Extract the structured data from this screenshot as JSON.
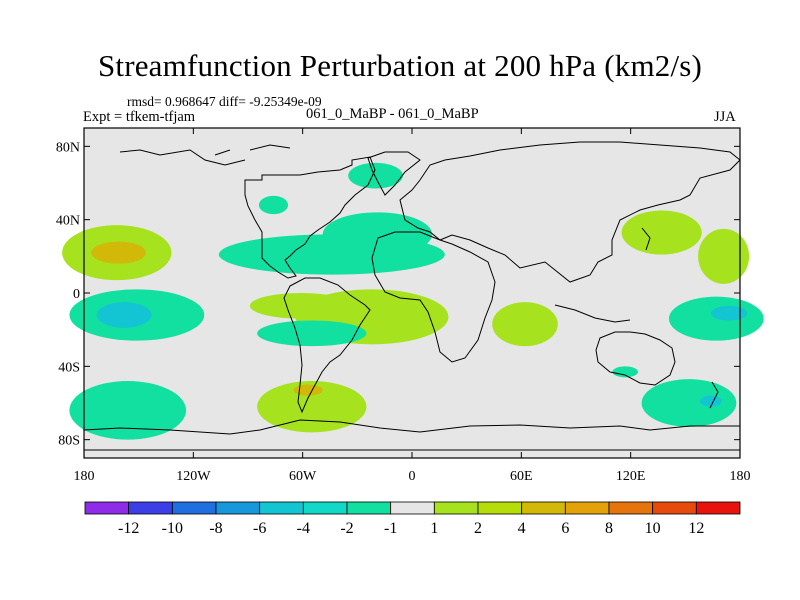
{
  "figure": {
    "title": "Streamfunction Perturbation at 200 hPa (km2/s)",
    "stats_line": "rmsd= 0.968647 diff= -9.25349e-09",
    "experiment_label": "Expt = tfkem-tfjam",
    "case_label": "061_0_MaBP - 061_0_MaBP",
    "season_label": "JJA"
  },
  "map": {
    "lon_range": [
      -180,
      180
    ],
    "lat_range": [
      -90,
      90
    ],
    "background_color": "#e6e6e6",
    "lat_ticks": [
      {
        "value": 80,
        "label": "80N"
      },
      {
        "value": 40,
        "label": "40N"
      },
      {
        "value": 0,
        "label": "0"
      },
      {
        "value": -40,
        "label": "40S"
      },
      {
        "value": -80,
        "label": "80S"
      }
    ],
    "lon_ticks": [
      {
        "value": -180,
        "label": "180"
      },
      {
        "value": -120,
        "label": "120W"
      },
      {
        "value": -60,
        "label": "60W"
      },
      {
        "value": 0,
        "label": "0"
      },
      {
        "value": 60,
        "label": "60E"
      },
      {
        "value": 120,
        "label": "120E"
      },
      {
        "value": 180,
        "label": "180"
      }
    ]
  },
  "colorbar": {
    "colors": [
      "#8e2ce8",
      "#3c3ee6",
      "#1f6fe0",
      "#1698da",
      "#13c5d2",
      "#12d8c8",
      "#12e0a0",
      "#e6e6e6",
      "#a6e21e",
      "#b6dc0a",
      "#d2b808",
      "#e4a20a",
      "#e6740c",
      "#e64a0c",
      "#e6140c"
    ],
    "labels": [
      "-12",
      "-10",
      "-8",
      "-6",
      "-4",
      "-2",
      "-1",
      "1",
      "2",
      "4",
      "6",
      "8",
      "10",
      "12"
    ]
  },
  "chart_data": {
    "type": "heatmap",
    "title": "Streamfunction Perturbation at 200 hPa (km2/s)",
    "xlabel": "",
    "ylabel": "",
    "xlim": [
      -180,
      180
    ],
    "ylim": [
      -90,
      90
    ],
    "contour_levels": [
      -12,
      -10,
      -8,
      -6,
      -4,
      -2,
      -1,
      1,
      2,
      4,
      6,
      8,
      10,
      12
    ],
    "regions": [
      {
        "level": "1 to 2",
        "lon": -162,
        "lat": 22,
        "rlon": 30,
        "rlat": 15
      },
      {
        "level": "2 to 4",
        "lon": -161,
        "lat": 22,
        "rlon": 15,
        "rlat": 6
      },
      {
        "level": "-2 to -1",
        "lon": -151,
        "lat": -12,
        "rlon": 37,
        "rlat": 14
      },
      {
        "level": "-4 to -2",
        "lon": -158,
        "lat": -12,
        "rlon": 15,
        "rlat": 7
      },
      {
        "level": "-2 to -1",
        "lon": -156,
        "lat": -64,
        "rlon": 32,
        "rlat": 16
      },
      {
        "level": "-2 to -1",
        "lon": -44,
        "lat": 21,
        "rlon": 62,
        "rlat": 11
      },
      {
        "level": "-2 to -1",
        "lon": -19,
        "lat": 32,
        "rlon": 30,
        "rlat": 12
      },
      {
        "level": "-2 to -1",
        "lon": -20,
        "lat": 64,
        "rlon": 15,
        "rlat": 7
      },
      {
        "level": "-2 to -1",
        "lon": -76,
        "lat": 48,
        "rlon": 8,
        "rlat": 5
      },
      {
        "level": "1 to 2",
        "lon": -22,
        "lat": -13,
        "rlon": 42,
        "rlat": 15
      },
      {
        "level": "1 to 2",
        "lon": -61,
        "lat": -7,
        "rlon": 28,
        "rlat": 7
      },
      {
        "level": "-2 to -1",
        "lon": -55,
        "lat": -22,
        "rlon": 30,
        "rlat": 7
      },
      {
        "level": "1 to 2",
        "lon": -55,
        "lat": -62,
        "rlon": 30,
        "rlat": 14
      },
      {
        "level": "2 to 4",
        "lon": -57,
        "lat": -53,
        "rlon": 8,
        "rlat": 3
      },
      {
        "level": "1 to 2",
        "lon": 62,
        "lat": -17,
        "rlon": 18,
        "rlat": 12
      },
      {
        "level": "1 to 2",
        "lon": 137,
        "lat": 33,
        "rlon": 22,
        "rlat": 12
      },
      {
        "level": "1 to 2",
        "lon": 171,
        "lat": 20,
        "rlon": 14,
        "rlat": 15
      },
      {
        "level": "-2 to -1",
        "lon": 167,
        "lat": -14,
        "rlon": 26,
        "rlat": 12
      },
      {
        "level": "-4 to -2",
        "lon": 174,
        "lat": -11,
        "rlon": 10,
        "rlat": 4
      },
      {
        "level": "-2 to -1",
        "lon": 152,
        "lat": -60,
        "rlon": 26,
        "rlat": 13
      },
      {
        "level": "-4 to -2",
        "lon": 164,
        "lat": -59,
        "rlon": 6,
        "rlat": 3
      },
      {
        "level": "-2 to -1",
        "lon": 117,
        "lat": -43,
        "rlon": 7,
        "rlat": 3
      }
    ]
  }
}
